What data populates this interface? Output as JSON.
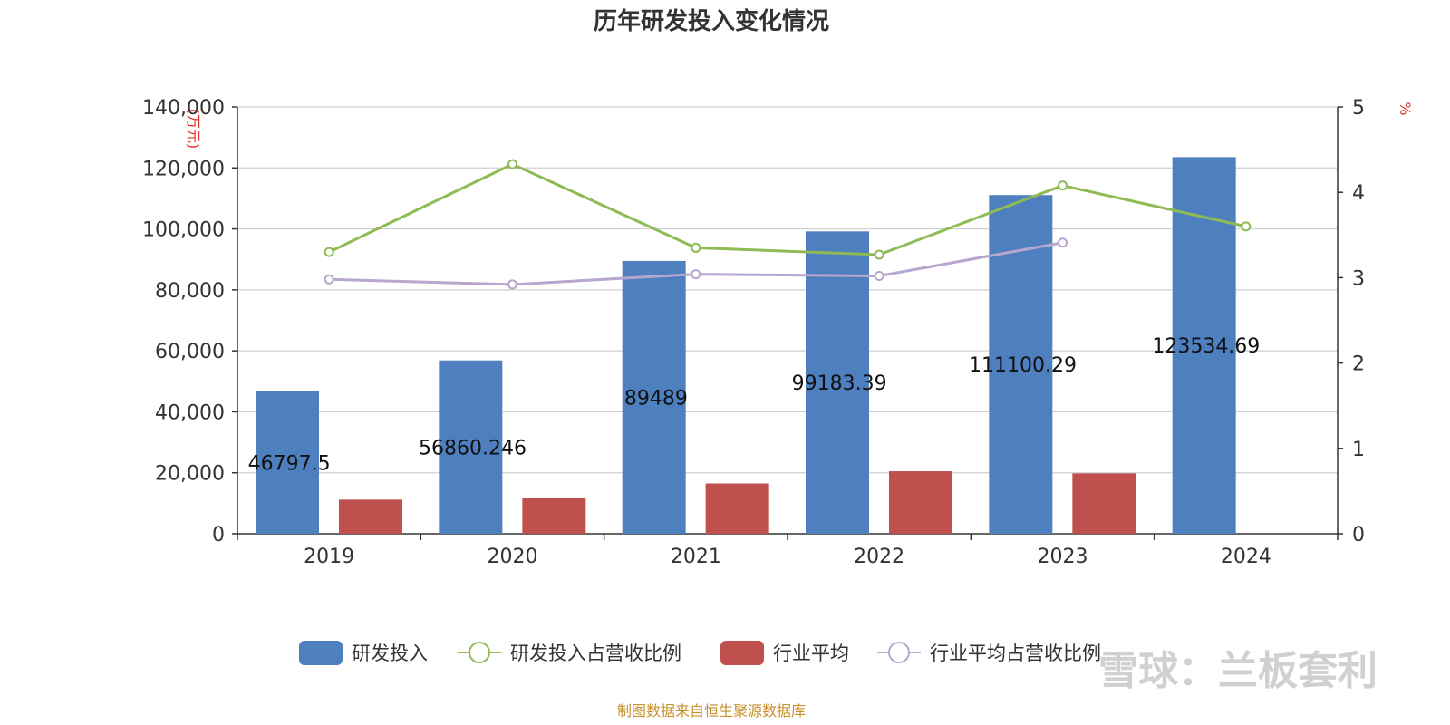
{
  "chart_data": {
    "type": "bar",
    "title": "历年研发投入变化情况",
    "categories": [
      "2019",
      "2020",
      "2021",
      "2022",
      "2023",
      "2024"
    ],
    "left_axis": {
      "unit": "(万元)",
      "ylim": [
        0,
        140000
      ],
      "ticks": [
        "0",
        "20,000",
        "40,000",
        "60,000",
        "80,000",
        "100,000",
        "120,000",
        "140,000"
      ]
    },
    "right_axis": {
      "unit": "%",
      "ylim": [
        0,
        5
      ],
      "ticks": [
        "0",
        "1",
        "2",
        "3",
        "4",
        "5"
      ]
    },
    "series": [
      {
        "name": "研发投入",
        "kind": "bar",
        "axis": "left",
        "color": "#4e7fbe",
        "values": [
          46797.5,
          56860.246,
          89489,
          99183.39,
          111100.29,
          123534.69
        ],
        "labels": [
          "46797.5",
          "56860.246",
          "89489",
          "99183.39",
          "111100.29",
          "123534.69"
        ]
      },
      {
        "name": "研发投入占营收比例",
        "kind": "line",
        "axis": "right",
        "color": "#8fba54",
        "values": [
          3.3,
          4.33,
          3.35,
          3.27,
          4.08,
          3.6
        ]
      },
      {
        "name": "行业平均",
        "kind": "bar",
        "axis": "left",
        "color": "#c0504d",
        "values": [
          11200,
          11800,
          16500,
          20500,
          19800,
          null
        ]
      },
      {
        "name": "行业平均占营收比例",
        "kind": "line",
        "axis": "right",
        "color": "#b7a6cd",
        "values": [
          2.98,
          2.92,
          3.04,
          3.02,
          3.41,
          null
        ]
      }
    ],
    "grid": true,
    "legend": "bottom"
  },
  "footer": {
    "source": "制图数据来自恒生聚源数据库"
  },
  "watermark": "雪球：兰板套利"
}
